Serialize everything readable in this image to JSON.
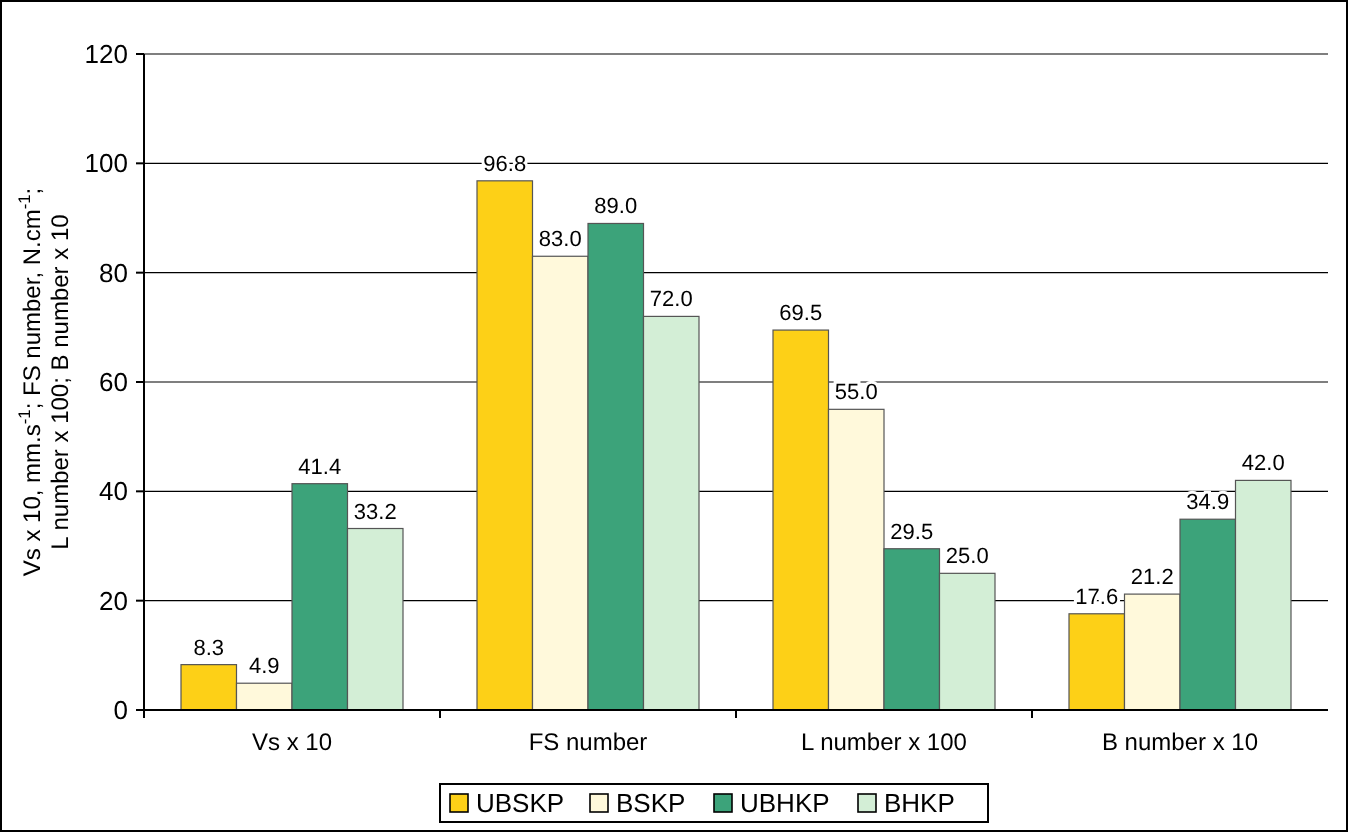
{
  "chart_data": {
    "type": "bar",
    "ylabel": "Vs x 10, mm.s$^{-1}$; FS number, N.cm$^{-1}$;\nL  number x 100; B number x 10",
    "categories": [
      "Vs x 10",
      "FS number",
      "L number x 100",
      "B number x 10"
    ],
    "series": [
      {
        "name": "UBSKP",
        "color": "#fdd017",
        "values": [
          8.3,
          96.8,
          69.5,
          17.6
        ],
        "value_labels": [
          "8.3",
          "96.8",
          "69.5",
          "17.6"
        ]
      },
      {
        "name": "BSKP",
        "color": "#fff9db",
        "values": [
          4.9,
          83.0,
          55.0,
          21.2
        ],
        "value_labels": [
          "4.9",
          "83.0",
          "55.0",
          "21.2"
        ]
      },
      {
        "name": "UBHKP",
        "color": "#3ca37a",
        "values": [
          41.4,
          89.0,
          29.5,
          34.9
        ],
        "value_labels": [
          "41.4",
          "89.0",
          "29.5",
          "34.9"
        ]
      },
      {
        "name": "BHKP",
        "color": "#d3eed6",
        "values": [
          33.2,
          72.0,
          25.0,
          42.0
        ],
        "value_labels": [
          "33.2",
          "72.0",
          "25.0",
          "42.0"
        ]
      }
    ],
    "ylim": [
      0,
      120
    ],
    "yticks": [
      0,
      20,
      40,
      60,
      80,
      100,
      120
    ],
    "grid": "y",
    "legend": "bottom"
  }
}
